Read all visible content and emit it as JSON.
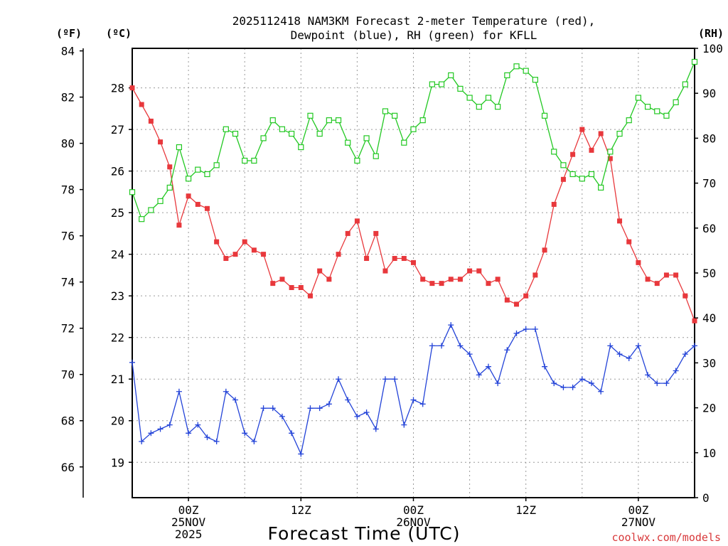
{
  "chart_data": {
    "type": "line",
    "title_line1": "2025112418 NAM3KM Forecast 2-meter Temperature (red),",
    "title_line2": "Dewpoint (blue), RH (green) for KFLL",
    "xlabel": "Forecast Time (UTC)",
    "credit": "coolwx.com/models",
    "unit_f": "(ºF)",
    "unit_c": "(ºC)",
    "unit_rh": "(RH)",
    "x_hours_range": [
      0,
      60
    ],
    "celsius_range": [
      18.15,
      28.95
    ],
    "rh_range": [
      0,
      100
    ],
    "f_ticks": [
      66,
      68,
      70,
      72,
      74,
      76,
      78,
      80,
      82,
      84
    ],
    "c_ticks": [
      19,
      20,
      21,
      22,
      23,
      24,
      25,
      26,
      27,
      28
    ],
    "rh_ticks": [
      0,
      10,
      20,
      30,
      40,
      50,
      60,
      70,
      80,
      90,
      100
    ],
    "x_ticks": [
      {
        "hour": 6,
        "labels": [
          "00Z",
          "25NOV",
          "2025"
        ]
      },
      {
        "hour": 18,
        "labels": [
          "12Z"
        ]
      },
      {
        "hour": 30,
        "labels": [
          "00Z",
          "26NOV"
        ]
      },
      {
        "hour": 42,
        "labels": [
          "12Z"
        ]
      },
      {
        "hour": 54,
        "labels": [
          "00Z",
          "27NOV"
        ]
      }
    ],
    "x_grid_hours": [
      6,
      12,
      18,
      24,
      30,
      36,
      42,
      48,
      54
    ],
    "series": [
      {
        "name": "Temperature",
        "unit": "C",
        "color": "#e8383c",
        "marker": "filled-square",
        "values": [
          28.0,
          27.6,
          27.2,
          26.7,
          26.1,
          24.7,
          25.4,
          25.2,
          25.1,
          24.3,
          23.9,
          24.0,
          24.3,
          24.1,
          24.0,
          23.3,
          23.4,
          23.2,
          23.2,
          23.0,
          23.6,
          23.4,
          24.0,
          24.5,
          24.8,
          23.9,
          24.5,
          23.6,
          23.9,
          23.9,
          23.8,
          23.4,
          23.3,
          23.3,
          23.4,
          23.4,
          23.6,
          23.6,
          23.3,
          23.4,
          22.9,
          22.8,
          23.0,
          23.5,
          24.1,
          25.2,
          25.8,
          26.4,
          27.0,
          26.5,
          26.9,
          26.3,
          24.8,
          24.3,
          23.8,
          23.4,
          23.3,
          23.5,
          23.5,
          23.0,
          22.4
        ]
      },
      {
        "name": "Dewpoint",
        "unit": "C",
        "color": "#2343d8",
        "marker": "plus",
        "values": [
          21.4,
          19.5,
          19.7,
          19.8,
          19.9,
          20.7,
          19.7,
          19.9,
          19.6,
          19.5,
          20.7,
          20.5,
          19.7,
          19.5,
          20.3,
          20.3,
          20.1,
          19.7,
          19.2,
          20.3,
          20.3,
          20.4,
          21.0,
          20.5,
          20.1,
          20.2,
          19.8,
          21.0,
          21.0,
          19.9,
          20.5,
          20.4,
          21.8,
          21.8,
          22.3,
          21.8,
          21.6,
          21.1,
          21.3,
          20.9,
          21.7,
          22.1,
          22.2,
          22.2,
          21.3,
          20.9,
          20.8,
          20.8,
          21.0,
          20.9,
          20.7,
          21.8,
          21.6,
          21.5,
          21.8,
          21.1,
          20.9,
          20.9,
          21.2,
          21.6,
          21.8
        ]
      },
      {
        "name": "RH",
        "unit": "%",
        "color": "#22c822",
        "marker": "open-square",
        "values": [
          68,
          62,
          64,
          66,
          69,
          78,
          71,
          73,
          72,
          74,
          82,
          81,
          75,
          75,
          80,
          84,
          82,
          81,
          78,
          85,
          81,
          84,
          84,
          79,
          75,
          80,
          76,
          86,
          85,
          79,
          82,
          84,
          92,
          92,
          94,
          91,
          89,
          87,
          89,
          87,
          94,
          96,
          95,
          93,
          85,
          77,
          74,
          72,
          71,
          72,
          69,
          77,
          81,
          84,
          89,
          87,
          86,
          85,
          88,
          92,
          97
        ]
      }
    ]
  }
}
